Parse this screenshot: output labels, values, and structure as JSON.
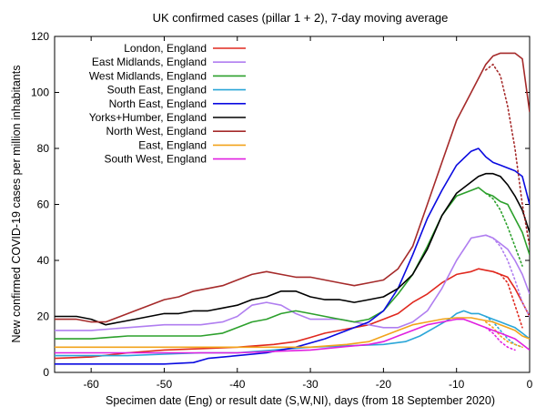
{
  "chart_data": {
    "type": "line",
    "title": "UK confirmed cases (pillar 1 + 2), 7-day moving average",
    "xlabel": "Specimen date (Eng) or result date (S,W,NI), days (from 18 September 2020)",
    "ylabel": "New confirmed COVID-19 cases per million inhabitants",
    "xlim": [
      -65,
      0
    ],
    "ylim": [
      0,
      120
    ],
    "xticks": [
      -60,
      -50,
      -40,
      -30,
      -20,
      -10,
      0
    ],
    "yticks": [
      0,
      20,
      40,
      60,
      80,
      100,
      120
    ],
    "grid": false,
    "legend_position": "top-left",
    "series": [
      {
        "name": "London, England",
        "color": "#e0281e",
        "points": [
          [
            -65,
            5
          ],
          [
            -60,
            5.5
          ],
          [
            -55,
            7
          ],
          [
            -50,
            8
          ],
          [
            -45,
            8.5
          ],
          [
            -40,
            9
          ],
          [
            -35,
            10
          ],
          [
            -32,
            11
          ],
          [
            -30,
            12.5
          ],
          [
            -28,
            14
          ],
          [
            -26,
            15
          ],
          [
            -24,
            16
          ],
          [
            -22,
            17
          ],
          [
            -20,
            19
          ],
          [
            -18,
            21
          ],
          [
            -16,
            25
          ],
          [
            -14,
            28
          ],
          [
            -12,
            32
          ],
          [
            -10,
            35
          ],
          [
            -8,
            36
          ],
          [
            -7,
            37
          ],
          [
            -6,
            36.5
          ],
          [
            -5,
            36
          ],
          [
            -4,
            35
          ],
          [
            -3,
            34
          ],
          [
            -2,
            30
          ],
          [
            -1,
            25
          ],
          [
            0,
            20
          ]
        ],
        "projection": [
          [
            -5,
            36
          ],
          [
            -4,
            35
          ],
          [
            -3,
            32
          ],
          [
            -2,
            24
          ],
          [
            -1,
            16
          ]
        ]
      },
      {
        "name": "East Midlands, England",
        "color": "#b07ef0",
        "points": [
          [
            -65,
            15
          ],
          [
            -60,
            15
          ],
          [
            -55,
            16
          ],
          [
            -50,
            17
          ],
          [
            -45,
            17
          ],
          [
            -42,
            18
          ],
          [
            -40,
            20
          ],
          [
            -38,
            24
          ],
          [
            -36,
            25
          ],
          [
            -34,
            24
          ],
          [
            -32,
            21
          ],
          [
            -30,
            19
          ],
          [
            -28,
            19
          ],
          [
            -26,
            19
          ],
          [
            -24,
            18
          ],
          [
            -22,
            17
          ],
          [
            -20,
            16
          ],
          [
            -18,
            16
          ],
          [
            -16,
            18
          ],
          [
            -14,
            22
          ],
          [
            -12,
            30
          ],
          [
            -10,
            40
          ],
          [
            -8,
            48
          ],
          [
            -6,
            49
          ],
          [
            -5,
            48
          ],
          [
            -4,
            46
          ],
          [
            -3,
            44
          ],
          [
            -2,
            40
          ],
          [
            -1,
            35
          ],
          [
            0,
            28
          ]
        ],
        "projection": [
          [
            -6,
            49
          ],
          [
            -5,
            48
          ],
          [
            -4,
            45
          ],
          [
            -3,
            40
          ],
          [
            -2,
            33
          ],
          [
            -1,
            25
          ],
          [
            0,
            20
          ]
        ]
      },
      {
        "name": "West Midlands, England",
        "color": "#2ca02c",
        "points": [
          [
            -65,
            12
          ],
          [
            -60,
            12
          ],
          [
            -55,
            13
          ],
          [
            -50,
            13
          ],
          [
            -45,
            13
          ],
          [
            -42,
            14
          ],
          [
            -40,
            16
          ],
          [
            -38,
            18
          ],
          [
            -36,
            19
          ],
          [
            -34,
            21
          ],
          [
            -32,
            22
          ],
          [
            -30,
            21
          ],
          [
            -28,
            20
          ],
          [
            -26,
            19
          ],
          [
            -24,
            18
          ],
          [
            -22,
            19
          ],
          [
            -20,
            22
          ],
          [
            -18,
            28
          ],
          [
            -16,
            35
          ],
          [
            -14,
            45
          ],
          [
            -12,
            56
          ],
          [
            -10,
            63
          ],
          [
            -8,
            65
          ],
          [
            -7,
            66
          ],
          [
            -6,
            64
          ],
          [
            -5,
            63
          ],
          [
            -4,
            61
          ],
          [
            -3,
            60
          ],
          [
            -2,
            55
          ],
          [
            -1,
            50
          ],
          [
            0,
            42
          ]
        ],
        "projection": [
          [
            -6,
            64
          ],
          [
            -5,
            62
          ],
          [
            -4,
            58
          ],
          [
            -3,
            52
          ],
          [
            -2,
            45
          ],
          [
            -1,
            38
          ]
        ]
      },
      {
        "name": "South East, England",
        "color": "#2aa6d8",
        "points": [
          [
            -65,
            6
          ],
          [
            -60,
            6
          ],
          [
            -55,
            6
          ],
          [
            -50,
            6.5
          ],
          [
            -45,
            7
          ],
          [
            -40,
            7
          ],
          [
            -35,
            8
          ],
          [
            -30,
            9
          ],
          [
            -25,
            9.5
          ],
          [
            -20,
            10
          ],
          [
            -17,
            11
          ],
          [
            -15,
            13
          ],
          [
            -13,
            16
          ],
          [
            -11,
            19
          ],
          [
            -10,
            21
          ],
          [
            -9,
            22
          ],
          [
            -8,
            21
          ],
          [
            -7,
            21
          ],
          [
            -6,
            20
          ],
          [
            -5,
            19
          ],
          [
            -4,
            18
          ],
          [
            -3,
            17
          ],
          [
            -2,
            16
          ],
          [
            -1,
            14
          ],
          [
            0,
            12
          ]
        ],
        "projection": [
          [
            -6,
            20
          ],
          [
            -5,
            18
          ],
          [
            -4,
            15
          ],
          [
            -3,
            12
          ],
          [
            -2,
            10
          ],
          [
            -1,
            9
          ]
        ]
      },
      {
        "name": "North East, England",
        "color": "#0a0ae0",
        "points": [
          [
            -65,
            3
          ],
          [
            -60,
            3
          ],
          [
            -55,
            3
          ],
          [
            -50,
            3
          ],
          [
            -46,
            3.5
          ],
          [
            -44,
            5
          ],
          [
            -40,
            6
          ],
          [
            -36,
            7
          ],
          [
            -32,
            9
          ],
          [
            -28,
            12
          ],
          [
            -25,
            15
          ],
          [
            -22,
            18
          ],
          [
            -20,
            22
          ],
          [
            -18,
            30
          ],
          [
            -16,
            42
          ],
          [
            -14,
            55
          ],
          [
            -12,
            65
          ],
          [
            -10,
            74
          ],
          [
            -8,
            79
          ],
          [
            -7,
            80
          ],
          [
            -6,
            77
          ],
          [
            -5,
            75
          ],
          [
            -4,
            74
          ],
          [
            -3,
            73
          ],
          [
            -2,
            72
          ],
          [
            -1,
            70
          ],
          [
            0,
            60
          ]
        ],
        "projection": []
      },
      {
        "name": "Yorks+Humber, England",
        "color": "#000000",
        "points": [
          [
            -65,
            20
          ],
          [
            -62,
            20
          ],
          [
            -60,
            19
          ],
          [
            -58,
            17
          ],
          [
            -56,
            18
          ],
          [
            -54,
            19
          ],
          [
            -52,
            20
          ],
          [
            -50,
            21
          ],
          [
            -48,
            21
          ],
          [
            -46,
            22
          ],
          [
            -44,
            22
          ],
          [
            -42,
            23
          ],
          [
            -40,
            24
          ],
          [
            -38,
            26
          ],
          [
            -36,
            27
          ],
          [
            -34,
            29
          ],
          [
            -32,
            29
          ],
          [
            -30,
            27
          ],
          [
            -28,
            26
          ],
          [
            -26,
            26
          ],
          [
            -24,
            25
          ],
          [
            -22,
            26
          ],
          [
            -20,
            27
          ],
          [
            -18,
            30
          ],
          [
            -16,
            35
          ],
          [
            -14,
            44
          ],
          [
            -12,
            56
          ],
          [
            -10,
            64
          ],
          [
            -8,
            68
          ],
          [
            -7,
            70
          ],
          [
            -6,
            71
          ],
          [
            -5,
            71
          ],
          [
            -4,
            70
          ],
          [
            -3,
            67
          ],
          [
            -2,
            63
          ],
          [
            -1,
            58
          ],
          [
            0,
            50
          ]
        ],
        "projection": []
      },
      {
        "name": "North West, England",
        "color": "#a52a2a",
        "points": [
          [
            -65,
            19
          ],
          [
            -62,
            19
          ],
          [
            -60,
            18
          ],
          [
            -58,
            18
          ],
          [
            -56,
            20
          ],
          [
            -54,
            22
          ],
          [
            -52,
            24
          ],
          [
            -50,
            26
          ],
          [
            -48,
            27
          ],
          [
            -46,
            29
          ],
          [
            -44,
            30
          ],
          [
            -42,
            31
          ],
          [
            -40,
            33
          ],
          [
            -38,
            35
          ],
          [
            -36,
            36
          ],
          [
            -34,
            35
          ],
          [
            -32,
            34
          ],
          [
            -30,
            34
          ],
          [
            -28,
            33
          ],
          [
            -26,
            32
          ],
          [
            -24,
            31
          ],
          [
            -22,
            32
          ],
          [
            -20,
            33
          ],
          [
            -18,
            37
          ],
          [
            -16,
            45
          ],
          [
            -14,
            60
          ],
          [
            -12,
            75
          ],
          [
            -10,
            90
          ],
          [
            -8,
            100
          ],
          [
            -7,
            105
          ],
          [
            -6,
            110
          ],
          [
            -5,
            113
          ],
          [
            -4,
            114
          ],
          [
            -3,
            114
          ],
          [
            -2,
            114
          ],
          [
            -1,
            112
          ],
          [
            0,
            93
          ]
        ],
        "projection": [
          [
            -6,
            108
          ],
          [
            -5,
            110
          ],
          [
            -4,
            106
          ],
          [
            -3,
            95
          ],
          [
            -2,
            80
          ],
          [
            -1,
            60
          ],
          [
            0,
            45
          ]
        ]
      },
      {
        "name": "East, England",
        "color": "#f2a31b",
        "points": [
          [
            -65,
            9
          ],
          [
            -60,
            9
          ],
          [
            -55,
            9
          ],
          [
            -50,
            9
          ],
          [
            -45,
            9
          ],
          [
            -40,
            9
          ],
          [
            -35,
            9
          ],
          [
            -30,
            9
          ],
          [
            -25,
            10
          ],
          [
            -22,
            11
          ],
          [
            -20,
            13
          ],
          [
            -18,
            15
          ],
          [
            -16,
            17
          ],
          [
            -14,
            18
          ],
          [
            -12,
            19
          ],
          [
            -10,
            19.5
          ],
          [
            -8,
            19.5
          ],
          [
            -7,
            19
          ],
          [
            -6,
            18.5
          ],
          [
            -5,
            18
          ],
          [
            -4,
            17
          ],
          [
            -3,
            16
          ],
          [
            -2,
            15
          ],
          [
            -1,
            13
          ],
          [
            0,
            12
          ]
        ],
        "projection": [
          [
            -6,
            18
          ],
          [
            -5,
            16
          ],
          [
            -4,
            13
          ],
          [
            -3,
            11
          ],
          [
            -2,
            10
          ],
          [
            -1,
            9
          ]
        ]
      },
      {
        "name": "South West, England",
        "color": "#e020e0",
        "points": [
          [
            -65,
            7
          ],
          [
            -60,
            7
          ],
          [
            -55,
            7
          ],
          [
            -50,
            7
          ],
          [
            -45,
            7
          ],
          [
            -40,
            7
          ],
          [
            -35,
            7.5
          ],
          [
            -30,
            8
          ],
          [
            -26,
            9
          ],
          [
            -22,
            10
          ],
          [
            -20,
            11
          ],
          [
            -18,
            13
          ],
          [
            -16,
            15
          ],
          [
            -14,
            17
          ],
          [
            -12,
            18
          ],
          [
            -10,
            19
          ],
          [
            -9,
            19
          ],
          [
            -8,
            18
          ],
          [
            -7,
            17
          ],
          [
            -6,
            16
          ],
          [
            -5,
            15
          ],
          [
            -4,
            14
          ],
          [
            -3,
            13
          ],
          [
            -2,
            12
          ],
          [
            -1,
            10
          ],
          [
            0,
            8
          ]
        ],
        "projection": [
          [
            -6,
            16
          ],
          [
            -5,
            14
          ],
          [
            -4,
            11
          ],
          [
            -3,
            9
          ],
          [
            -2,
            8
          ]
        ]
      }
    ]
  }
}
